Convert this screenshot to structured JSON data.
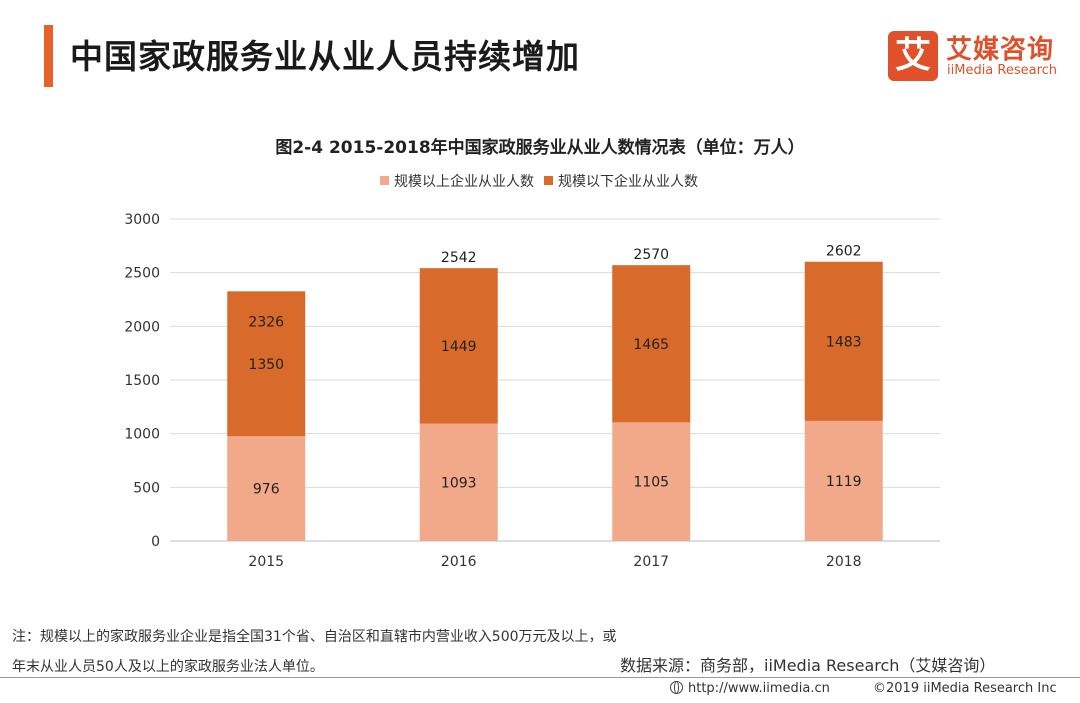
{
  "header": {
    "title": "中国家政服务业从业人员持续增加",
    "accent_color": "#e6622a"
  },
  "brand": {
    "logo_char": "艾",
    "name": "艾媒咨询",
    "sub": "iiMedia Research",
    "color": "#e0502a"
  },
  "chart_data": {
    "type": "bar",
    "stacked": true,
    "title": "图2-4 2015-2018年中国家政服务业从业人数情况表（单位：万人）",
    "categories": [
      "2015",
      "2016",
      "2017",
      "2018"
    ],
    "series": [
      {
        "name": "规模以上企业从业人数",
        "values": [
          976,
          1093,
          1105,
          1119
        ],
        "color": "#f2a98a"
      },
      {
        "name": "规模以下企业从业人数",
        "values": [
          1350,
          1449,
          1465,
          1483
        ],
        "color": "#d86b2c"
      }
    ],
    "totals": [
      2326,
      2542,
      2570,
      2602
    ],
    "ylim": [
      0,
      3000
    ],
    "yticks": [
      0,
      500,
      1000,
      1500,
      2000,
      2500,
      3000
    ],
    "grid": true,
    "legend": "top-center",
    "xlabel": "",
    "ylabel": ""
  },
  "notes": {
    "line1": "注：规模以上的家政服务业企业是指全国31个省、自治区和直辖市内营业收入500万元及以上，或",
    "line2": "年末从业人员50人及以上的家政服务业法人单位。"
  },
  "source": "数据来源：商务部，iiMedia Research（艾媒咨询）",
  "footer": {
    "url": "http://www.iimedia.cn",
    "copyright": "©2019  iiMedia Research  Inc"
  }
}
